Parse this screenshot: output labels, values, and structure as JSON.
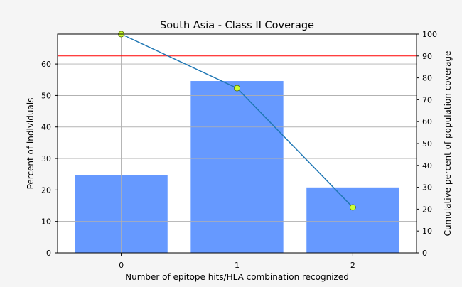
{
  "chart_data": {
    "type": "bar",
    "title": "South Asia - Class II Coverage",
    "xlabel": "Number of epitope hits/HLA combination recognized",
    "ylabel": "Percent of individuals",
    "y2label": "Cumulative percent of population coverage",
    "categories": [
      "0",
      "1",
      "2"
    ],
    "x": [
      0,
      1,
      2
    ],
    "ylim": [
      0,
      69.5
    ],
    "y2lim": [
      0,
      100
    ],
    "yticks": [
      "0",
      "10",
      "20",
      "30",
      "40",
      "50",
      "60"
    ],
    "y2ticks": [
      "0",
      "10",
      "20",
      "30",
      "40",
      "50",
      "60",
      "70",
      "80",
      "90",
      "100"
    ],
    "grid": true,
    "series": [
      {
        "kind": "bar",
        "axis": "left",
        "values": [
          24.7,
          54.6,
          20.8
        ],
        "color": "#6699ff"
      },
      {
        "kind": "line",
        "axis": "right",
        "values": [
          100,
          75.3,
          20.8
        ],
        "color": "#1f77b4",
        "marker_color": "#ccff33"
      }
    ],
    "reference_line": {
      "axis": "right",
      "value": 90,
      "color": "#ff0000"
    }
  }
}
